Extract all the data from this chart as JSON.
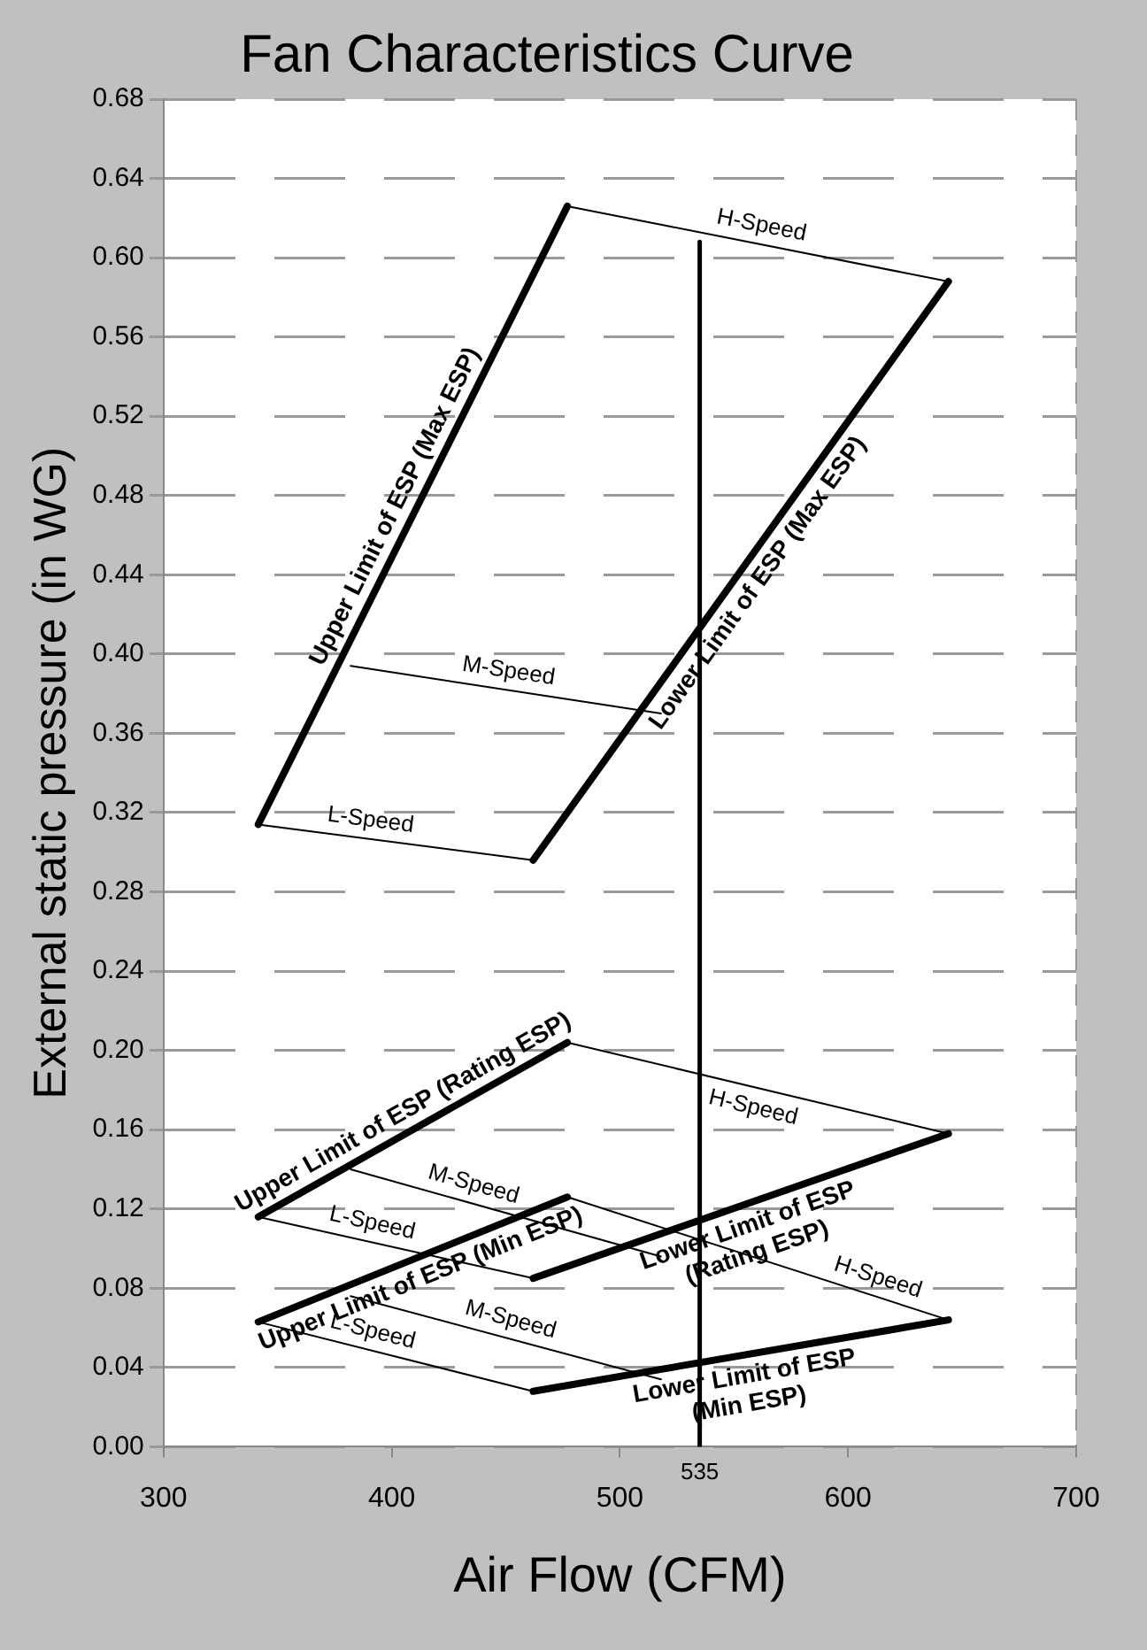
{
  "chart_data": {
    "type": "line",
    "title": "Fan Characteristics Curve",
    "xlabel": "Air Flow (CFM)",
    "ylabel": "External static pressure (in WG)",
    "xlim": [
      300,
      700
    ],
    "xticks": [
      300,
      400,
      500,
      600,
      700
    ],
    "ylim": [
      0,
      0.68
    ],
    "yticks": [
      {
        "value": 0,
        "label": "0.00"
      },
      {
        "value": 0.04,
        "label": "0.04"
      },
      {
        "value": 0.08,
        "label": "0.08"
      },
      {
        "value": 0.12,
        "label": "0.12"
      },
      {
        "value": 0.16,
        "label": "0.16"
      },
      {
        "value": 0.2,
        "label": "0.20"
      },
      {
        "value": 0.24,
        "label": "0.24"
      },
      {
        "value": 0.28,
        "label": "0.28"
      },
      {
        "value": 0.32,
        "label": "0.32"
      },
      {
        "value": 0.36,
        "label": "0.36"
      },
      {
        "value": 0.4,
        "label": "0.40"
      },
      {
        "value": 0.44,
        "label": "0.44"
      },
      {
        "value": 0.48,
        "label": "0.48"
      },
      {
        "value": 0.52,
        "label": "0.52"
      },
      {
        "value": 0.56,
        "label": "0.56"
      },
      {
        "value": 0.6,
        "label": "0.60"
      },
      {
        "value": 0.64,
        "label": "0.64"
      },
      {
        "value": 0.68,
        "label": "0.68"
      }
    ],
    "grid": "y",
    "legend": false,
    "marker": "none",
    "line_style": "solid",
    "annotations": [
      {
        "text": "535",
        "x": 535,
        "y": 0
      }
    ],
    "series": [
      {
        "name": "Upper Limit of ESP (Max ESP)",
        "color": "#000000",
        "x": [
          341.5,
          477
        ],
        "values": [
          0.314,
          0.626
        ]
      },
      {
        "name": "Lower Limit of ESP (Max ESP)",
        "color": "#000000",
        "x": [
          462,
          644
        ],
        "values": [
          0.296,
          0.588
        ]
      },
      {
        "name": "H-Speed",
        "color": "#000000",
        "x": [
          477,
          644
        ],
        "values": [
          0.626,
          0.588
        ]
      },
      {
        "name": "M-Speed",
        "color": "#000000",
        "x": [
          382,
          518
        ],
        "values": [
          0.394,
          0.37
        ]
      },
      {
        "name": "L-Speed",
        "color": "#000000",
        "x": [
          341.5,
          462
        ],
        "values": [
          0.314,
          0.296
        ]
      },
      {
        "name": "Upper Limit of ESP (Rating ESP)",
        "color": "#000000",
        "x": [
          341.5,
          477
        ],
        "values": [
          0.116,
          0.204
        ]
      },
      {
        "name": "Lower Limit of ESP\n(Rating ESP)",
        "color": "#000000",
        "x": [
          462,
          644
        ],
        "values": [
          0.085,
          0.158
        ]
      },
      {
        "name": "H-Speed",
        "color": "#000000",
        "x": [
          477,
          644
        ],
        "values": [
          0.204,
          0.158
        ]
      },
      {
        "name": "M-Speed",
        "color": "#000000",
        "x": [
          382,
          518
        ],
        "values": [
          0.14,
          0.096
        ]
      },
      {
        "name": "L-Speed",
        "color": "#000000",
        "x": [
          341.5,
          462
        ],
        "values": [
          0.116,
          0.085
        ]
      },
      {
        "name": "Upper Limit of ESP (Min ESP)",
        "color": "#000000",
        "x": [
          341.5,
          477
        ],
        "values": [
          0.063,
          0.126
        ]
      },
      {
        "name": "Lower Limit of ESP\n(Min ESP)",
        "color": "#000000",
        "x": [
          462,
          644
        ],
        "values": [
          0.028,
          0.064
        ]
      },
      {
        "name": "H-Speed",
        "color": "#000000",
        "x": [
          477,
          644
        ],
        "values": [
          0.126,
          0.064
        ]
      },
      {
        "name": "M-Speed",
        "color": "#000000",
        "x": [
          382,
          518
        ],
        "values": [
          0.076,
          0.034
        ]
      },
      {
        "name": "L-Speed",
        "color": "#000000",
        "x": [
          341.5,
          462
        ],
        "values": [
          0.063,
          0.028
        ]
      },
      {
        "color": "#000000",
        "x": [
          535,
          535
        ],
        "values": [
          0,
          0.608
        ]
      }
    ]
  }
}
